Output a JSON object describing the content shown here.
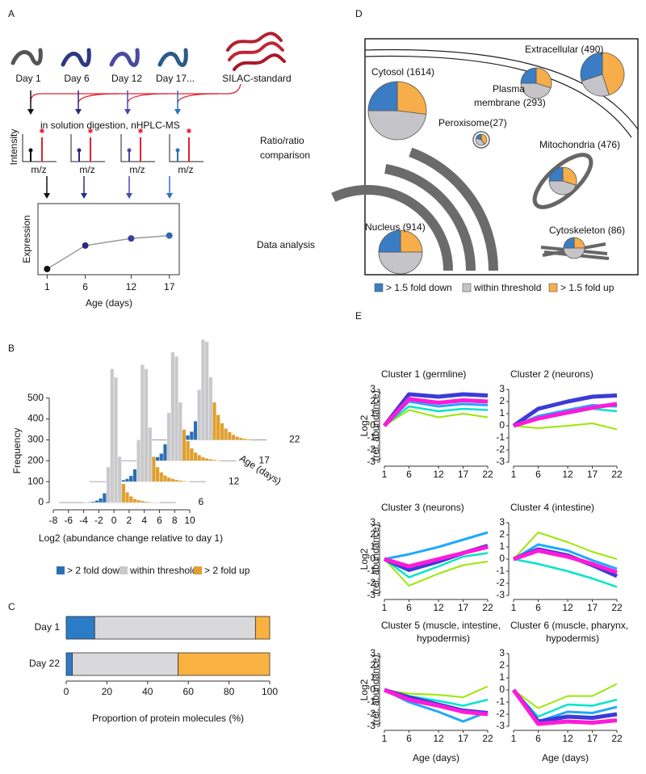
{
  "panel_labels": [
    "A",
    "B",
    "C",
    "D",
    "E"
  ],
  "panel_a": {
    "worm_labels": [
      "Day 1",
      "Day 6",
      "Day 12",
      "Day 17...",
      "SILAC-standard"
    ],
    "digestion": "in solution digestion, nHPLC-MS",
    "spectrum_ylabel": "Intensity",
    "spectrum_xlabels": [
      "m/z",
      "m/z",
      "m/z",
      "m/z"
    ],
    "ratio": [
      "Ratio/ratio",
      "comparison"
    ],
    "analysis": "Data analysis"
  },
  "chart_data": [
    {
      "type": "line",
      "x": [
        1,
        6,
        12,
        17
      ],
      "values": [
        0.08,
        0.41,
        0.51,
        0.55
      ],
      "point_colors": [
        "#111111",
        "#2b2b80",
        "#3d3d9e",
        "#2a6aaa"
      ],
      "color": "#999999",
      "xlim": [
        -0.2,
        18.3
      ],
      "xticks": [
        1,
        6,
        12,
        17
      ],
      "ylim": [
        0,
        1
      ],
      "xlabel": "Age (days)",
      "ylabel": "Expression"
    },
    {
      "type": "histogram",
      "bins": [
        -4,
        -3.5,
        -3,
        -2.5,
        -2,
        -1.5,
        -1,
        -0.5,
        0,
        0.5,
        1,
        1.5,
        2,
        2.5,
        3,
        3.5,
        4,
        4.5,
        5,
        5.5,
        6
      ],
      "series": [
        {
          "name": "6",
          "values": [
            2,
            3,
            5,
            10,
            20,
            45,
            170,
            640,
            600,
            220,
            90,
            50,
            30,
            18,
            12,
            8,
            5,
            3,
            2,
            1
          ]
        },
        {
          "name": "12",
          "values": [
            3,
            5,
            8,
            14,
            28,
            60,
            200,
            560,
            540,
            260,
            120,
            70,
            45,
            30,
            20,
            14,
            9,
            6,
            4,
            2
          ]
        },
        {
          "name": "17",
          "values": [
            4,
            6,
            10,
            18,
            35,
            80,
            230,
            520,
            500,
            280,
            150,
            95,
            60,
            40,
            28,
            18,
            12,
            8,
            5,
            3
          ]
        },
        {
          "name": "22",
          "values": [
            5,
            8,
            12,
            22,
            40,
            90,
            240,
            480,
            470,
            300,
            180,
            120,
            80,
            55,
            38,
            25,
            16,
            10,
            6,
            4
          ]
        }
      ],
      "color_thresholds": [
        -1,
        1
      ],
      "legend": [
        {
          "label": "> 2 fold down",
          "color": "#2a6fb5"
        },
        {
          "label": "within threshold",
          "color": "#c9c9cc"
        },
        {
          "label": "> 2 fold up",
          "color": "#e0a030"
        }
      ],
      "xlim": [
        -8,
        10
      ],
      "xticks": [
        -8,
        -6,
        -4,
        -2,
        0,
        2,
        4,
        6,
        8,
        10
      ],
      "ylim": [
        0,
        700
      ],
      "yticks": [
        0,
        100,
        200,
        300,
        400,
        500
      ],
      "xlabel": "Log2 (abundance change relative to day 1)",
      "ylabel": "Frequency",
      "series_label": "Age (days)"
    },
    {
      "type": "bar",
      "orientation": "horizontal",
      "stacked": true,
      "categories": [
        "Day 1",
        "Day 22"
      ],
      "series": [
        {
          "color": "#2a7cc7",
          "values": [
            14,
            3
          ]
        },
        {
          "color": "#d9d9dc",
          "values": [
            79,
            52
          ]
        },
        {
          "color": "#f9b140",
          "values": [
            7,
            45
          ]
        }
      ],
      "xlim": [
        0,
        100
      ],
      "xticks": [
        0,
        20,
        40,
        60,
        80,
        100
      ],
      "xlabel": "Proportion of protein molecules (%)"
    },
    {
      "type": "pie",
      "series": [
        {
          "name": "> 1.5 fold down",
          "color": "#3b7dc4"
        },
        {
          "name": "within threshold",
          "color": "#c5c5c9"
        },
        {
          "name": "> 1.5 fold up",
          "color": "#f7ae4a"
        }
      ],
      "pies": [
        {
          "label": [
            "Cytosol (1614)"
          ],
          "values": [
            25,
            48,
            27
          ]
        },
        {
          "label": [
            "Plasma",
            "membrane (293)"
          ],
          "values": [
            25,
            45,
            30
          ]
        },
        {
          "label": [
            "Extracellular (490)"
          ],
          "values": [
            30,
            25,
            45
          ]
        },
        {
          "label": [
            "Peroxisome(27)"
          ],
          "values": [
            20,
            40,
            40
          ]
        },
        {
          "label": [
            "Mitochondria (476)"
          ],
          "values": [
            25,
            45,
            30
          ]
        },
        {
          "label": [
            "Nucleus (914)"
          ],
          "values": [
            25,
            50,
            25
          ]
        },
        {
          "label": [
            "Cytoskeleton (86)"
          ],
          "values": [
            25,
            50,
            25
          ]
        }
      ]
    },
    {
      "type": "line",
      "title": [
        "Cluster 1 (germline)"
      ],
      "ylabel": [
        "Log2",
        "(rel. abundance)"
      ],
      "x": [
        1,
        6,
        12,
        17,
        22
      ],
      "xlim": [
        1,
        22
      ],
      "xticks": [
        1,
        6,
        12,
        17,
        22
      ],
      "ylim": [
        -3,
        3
      ],
      "yticks": [
        3,
        2,
        1,
        0,
        -1,
        -2,
        -3
      ],
      "series": [
        {
          "color": "#9be800",
          "values": [
            0,
            1.3,
            0.7,
            1.0,
            0.7
          ]
        },
        {
          "color": "#00e5c8",
          "values": [
            0,
            1.6,
            1.2,
            1.4,
            1.3
          ]
        },
        {
          "color": "#1fa8ff",
          "values": [
            0,
            2.0,
            1.6,
            1.8,
            1.7
          ]
        },
        {
          "color": "#3b3bd8",
          "values": [
            0,
            2.6,
            2.4,
            2.6,
            2.5
          ]
        },
        {
          "color": "#ff1ad9",
          "values": [
            0,
            2.2,
            1.9,
            2.1,
            2.0
          ]
        }
      ]
    },
    {
      "type": "line",
      "title": [
        "Cluster 2 (neurons)"
      ],
      "x": [
        1,
        6,
        12,
        17,
        22
      ],
      "xlim": [
        1,
        22
      ],
      "xticks": [
        1,
        6,
        12,
        17,
        22
      ],
      "ylim": [
        -3,
        3
      ],
      "yticks": [
        3,
        2,
        1,
        0,
        -1,
        -2,
        -3
      ],
      "series": [
        {
          "color": "#9be800",
          "values": [
            0,
            -0.2,
            0,
            0.2,
            -0.3
          ]
        },
        {
          "color": "#00e5c8",
          "values": [
            0,
            0.6,
            1.0,
            1.4,
            1.2
          ]
        },
        {
          "color": "#1fa8ff",
          "values": [
            0,
            0.8,
            1.3,
            1.7,
            1.6
          ]
        },
        {
          "color": "#3b3bd8",
          "values": [
            0,
            1.4,
            2.0,
            2.4,
            2.5
          ]
        },
        {
          "color": "#ff1ad9",
          "values": [
            0,
            0.6,
            1.1,
            1.5,
            1.8
          ]
        }
      ]
    },
    {
      "type": "line",
      "title": [
        "Cluster 3 (neurons)"
      ],
      "ylabel": [
        "Log2",
        "(rel. abundance)"
      ],
      "x": [
        1,
        6,
        12,
        17,
        22
      ],
      "xlim": [
        1,
        22
      ],
      "xticks": [
        1,
        6,
        12,
        17,
        22
      ],
      "ylim": [
        -3,
        3
      ],
      "yticks": [
        3,
        2,
        1,
        0,
        -1,
        -2,
        -3
      ],
      "series": [
        {
          "color": "#9be800",
          "values": [
            0,
            -2.2,
            -1.2,
            -0.5,
            -0.2
          ]
        },
        {
          "color": "#00e5c8",
          "values": [
            0,
            -1.5,
            -0.6,
            0.2,
            0.5
          ]
        },
        {
          "color": "#1fa8ff",
          "values": [
            0,
            0.4,
            1.0,
            1.6,
            2.2
          ]
        },
        {
          "color": "#3b3bd8",
          "values": [
            0,
            -0.9,
            -0.2,
            0.5,
            1.1
          ]
        },
        {
          "color": "#ff1ad9",
          "values": [
            0,
            -0.6,
            0,
            0.5,
            1.0
          ]
        }
      ]
    },
    {
      "type": "line",
      "title": [
        "Cluster 4 (intestine)"
      ],
      "x": [
        1,
        6,
        12,
        17,
        22
      ],
      "xlim": [
        1,
        22
      ],
      "xticks": [
        1,
        6,
        12,
        17,
        22
      ],
      "ylim": [
        -3,
        3
      ],
      "yticks": [
        3,
        2,
        1,
        0,
        -1,
        -2,
        -3
      ],
      "series": [
        {
          "color": "#9be800",
          "values": [
            0,
            2.2,
            1.4,
            0.6,
            0
          ]
        },
        {
          "color": "#00e5c8",
          "values": [
            0,
            -0.4,
            -1.0,
            -1.6,
            -2.3
          ]
        },
        {
          "color": "#1fa8ff",
          "values": [
            0,
            1.2,
            0.7,
            -0.1,
            -0.8
          ]
        },
        {
          "color": "#3b3bd8",
          "values": [
            0,
            0.8,
            0.3,
            -0.5,
            -1.4
          ]
        },
        {
          "color": "#ff1ad9",
          "values": [
            0,
            0.7,
            0.2,
            -0.4,
            -1.1
          ]
        }
      ]
    },
    {
      "type": "line",
      "title": [
        "Cluster 5 (muscle, intestine,",
        "hypodermis)"
      ],
      "ylabel": [
        "Log2",
        "(rel. abundance)"
      ],
      "xlabel": "Age (days)",
      "x": [
        1,
        6,
        12,
        17,
        22
      ],
      "xlim": [
        1,
        22
      ],
      "xticks": [
        1,
        6,
        12,
        17,
        22
      ],
      "ylim": [
        -3,
        3
      ],
      "yticks": [
        3,
        2,
        1,
        0,
        -1,
        -2,
        -3
      ],
      "series": [
        {
          "color": "#9be800",
          "values": [
            0,
            -0.3,
            -0.4,
            -0.6,
            0.3
          ]
        },
        {
          "color": "#00e5c8",
          "values": [
            0,
            -0.5,
            -0.9,
            -1.3,
            -0.8
          ]
        },
        {
          "color": "#1fa8ff",
          "values": [
            0,
            -1.0,
            -1.8,
            -2.6,
            -1.8
          ]
        },
        {
          "color": "#3b3bd8",
          "values": [
            0,
            -0.6,
            -1.2,
            -1.7,
            -1.9
          ]
        },
        {
          "color": "#ff1ad9",
          "values": [
            0,
            -0.8,
            -1.3,
            -1.8,
            -2.0
          ]
        }
      ]
    },
    {
      "type": "line",
      "title": [
        "Cluster 6 (muscle, pharynx,",
        "hypodermis)"
      ],
      "xlabel": "Age (days)",
      "x": [
        1,
        6,
        12,
        17,
        22
      ],
      "xlim": [
        1,
        22
      ],
      "xticks": [
        1,
        6,
        12,
        17,
        22
      ],
      "ylim": [
        -3,
        3
      ],
      "yticks": [
        3,
        2,
        1,
        0,
        -1,
        -2,
        -3
      ],
      "series": [
        {
          "color": "#9be800",
          "values": [
            0,
            -1.5,
            -0.5,
            -0.5,
            0.5
          ]
        },
        {
          "color": "#00e5c8",
          "values": [
            0,
            -2.2,
            -1.2,
            -1.3,
            -0.8
          ]
        },
        {
          "color": "#1fa8ff",
          "values": [
            0,
            -2.6,
            -1.8,
            -1.9,
            -1.4
          ]
        },
        {
          "color": "#3b3bd8",
          "values": [
            0,
            -2.6,
            -2.2,
            -2.3,
            -2.0
          ]
        },
        {
          "color": "#ff1ad9",
          "values": [
            0,
            -2.8,
            -2.6,
            -2.7,
            -2.5
          ]
        }
      ]
    }
  ]
}
